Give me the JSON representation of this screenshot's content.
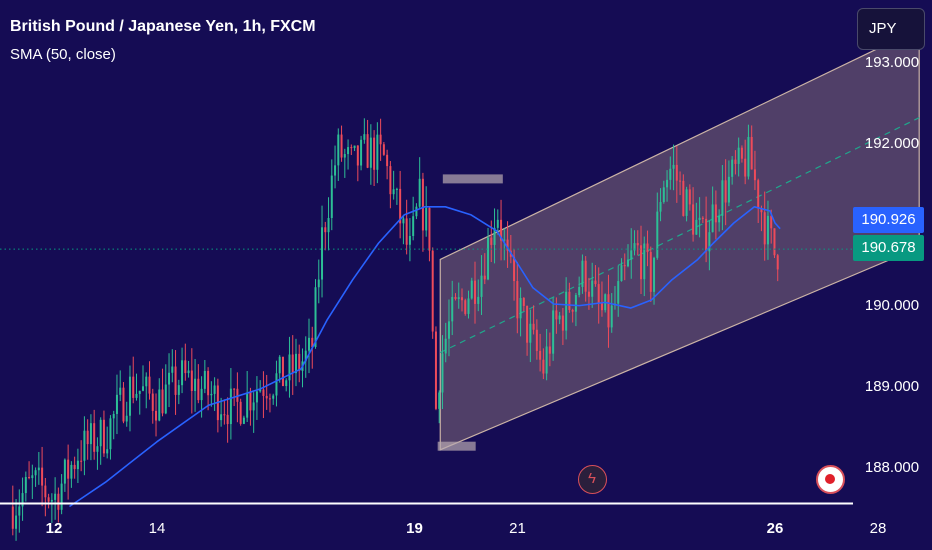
{
  "header": {
    "title": "British Pound / Japanese Yen, 1h, FXCM",
    "indicator": "SMA (50, close)",
    "currency": "JPY"
  },
  "price_tags": {
    "sma_value": "190.926",
    "last_price": "190.678"
  },
  "controls": {
    "flash_icon": "lightning-icon",
    "record_icon": "record-icon"
  },
  "colors": {
    "background": "#150c54",
    "up_candle": "#2dbf96",
    "down_candle": "#ee4b5a",
    "sma_line": "#2962ff",
    "channel_fill": "#c8a893",
    "last_price_line": "#089981"
  },
  "chart_data": {
    "type": "candlestick",
    "title": "British Pound / Japanese Yen, 1h, FXCM",
    "symbol": "GBPJPY",
    "timeframe": "1h",
    "indicator": "SMA (50, close)",
    "ylim": [
      187.6,
      193.4
    ],
    "y_ticks": [
      "193.000",
      "192.000",
      "190.000",
      "189.000",
      "188.000"
    ],
    "x_ticks": [
      {
        "label": "12",
        "day": 12,
        "bold": true
      },
      {
        "label": "14",
        "day": 14,
        "bold": false
      },
      {
        "label": "19",
        "day": 19,
        "bold": true
      },
      {
        "label": "21",
        "day": 21,
        "bold": false
      },
      {
        "label": "26",
        "day": 26,
        "bold": true
      },
      {
        "label": "28",
        "day": 28,
        "bold": false
      }
    ],
    "last_price": 190.678,
    "sma_last": 190.926,
    "price_path": [
      [
        11.2,
        187.5
      ],
      [
        11.6,
        187.8
      ],
      [
        12.0,
        187.6
      ],
      [
        12.5,
        188.2
      ],
      [
        13.0,
        188.4
      ],
      [
        13.5,
        189.0
      ],
      [
        14.0,
        188.8
      ],
      [
        14.5,
        189.1
      ],
      [
        15.0,
        188.9
      ],
      [
        15.5,
        188.7
      ],
      [
        16.0,
        189.0
      ],
      [
        16.5,
        189.1
      ],
      [
        17.0,
        189.4
      ],
      [
        17.2,
        190.8
      ],
      [
        17.5,
        191.9
      ],
      [
        17.8,
        191.7
      ],
      [
        18.1,
        191.9
      ],
      [
        18.4,
        191.8
      ],
      [
        18.7,
        191.1
      ],
      [
        18.9,
        190.6
      ],
      [
        19.1,
        191.3
      ],
      [
        19.3,
        190.8
      ],
      [
        19.4,
        188.6
      ],
      [
        19.5,
        189.3
      ],
      [
        19.7,
        189.8
      ],
      [
        20.0,
        190.1
      ],
      [
        20.3,
        190.4
      ],
      [
        20.6,
        191.2
      ],
      [
        20.8,
        190.5
      ],
      [
        21.0,
        190.0
      ],
      [
        21.3,
        189.5
      ],
      [
        21.5,
        189.2
      ],
      [
        21.7,
        189.7
      ],
      [
        22.0,
        190.0
      ],
      [
        22.3,
        190.4
      ],
      [
        22.6,
        189.9
      ],
      [
        22.8,
        189.8
      ],
      [
        23.0,
        190.2
      ],
      [
        23.3,
        190.7
      ],
      [
        23.6,
        190.3
      ],
      [
        23.8,
        191.5
      ],
      [
        24.0,
        191.7
      ],
      [
        24.3,
        191.2
      ],
      [
        24.6,
        190.8
      ],
      [
        24.9,
        191.3
      ],
      [
        25.2,
        191.6
      ],
      [
        25.5,
        191.8
      ],
      [
        25.8,
        191.0
      ],
      [
        26.0,
        190.6
      ],
      [
        26.1,
        190.7
      ]
    ],
    "sma_path": [
      [
        12.3,
        187.5
      ],
      [
        13.0,
        187.8
      ],
      [
        14.0,
        188.3
      ],
      [
        15.0,
        188.75
      ],
      [
        16.0,
        188.95
      ],
      [
        16.8,
        189.2
      ],
      [
        17.3,
        189.8
      ],
      [
        17.8,
        190.3
      ],
      [
        18.3,
        190.75
      ],
      [
        18.8,
        191.1
      ],
      [
        19.2,
        191.2
      ],
      [
        19.6,
        191.2
      ],
      [
        20.1,
        191.1
      ],
      [
        20.6,
        190.9
      ],
      [
        21.0,
        190.5
      ],
      [
        21.3,
        190.2
      ],
      [
        21.7,
        190.0
      ],
      [
        22.2,
        189.98
      ],
      [
        22.7,
        190.02
      ],
      [
        23.2,
        189.95
      ],
      [
        23.6,
        190.05
      ],
      [
        24.0,
        190.3
      ],
      [
        24.5,
        190.55
      ],
      [
        24.8,
        190.75
      ],
      [
        25.2,
        191.0
      ],
      [
        25.6,
        191.2
      ],
      [
        25.9,
        191.15
      ],
      [
        26.0,
        191.0
      ],
      [
        26.1,
        190.93
      ]
    ],
    "channel": {
      "start_day": 19.5,
      "end_day": 28.8,
      "lower_start": 188.2,
      "lower_end": 190.7,
      "upper_start": 190.55,
      "upper_end": 193.4,
      "midline_start": 189.4,
      "midline_end": 192.3
    },
    "grid": false
  }
}
